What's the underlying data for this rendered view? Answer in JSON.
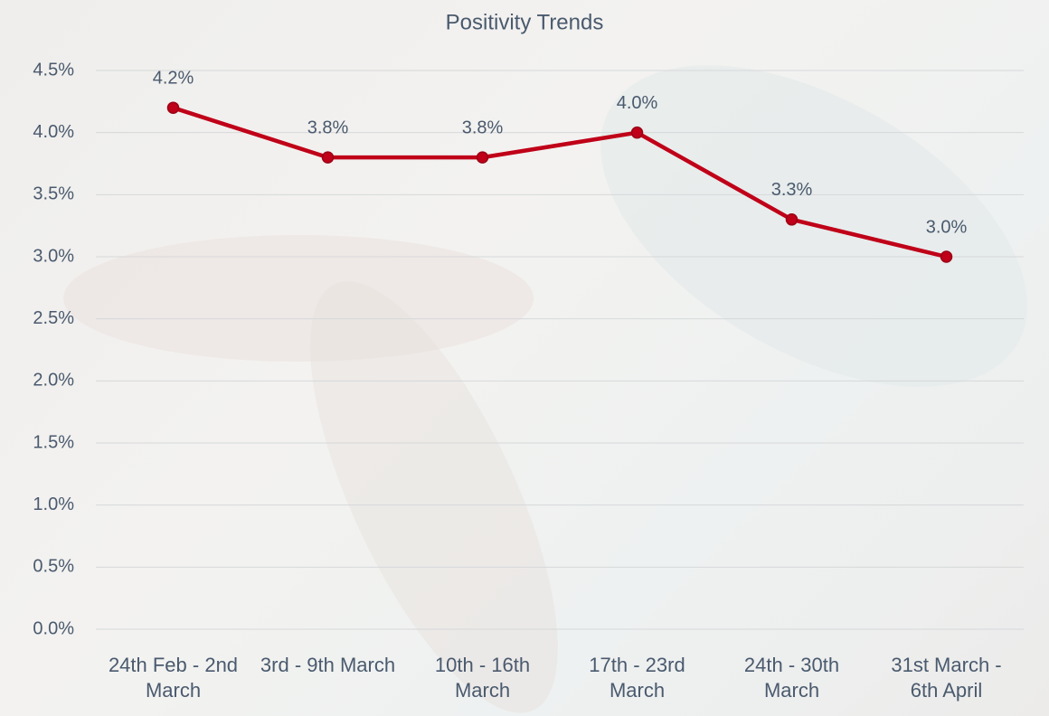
{
  "chart_data": {
    "type": "line",
    "title": "Positivity Trends",
    "categories": [
      "24th Feb - 2nd March",
      "3rd - 9th March",
      "10th - 16th March",
      "17th - 23rd March",
      "24th - 30th March",
      "31st March - 6th April"
    ],
    "series": [
      {
        "name": "Positivity",
        "color": "#c00018",
        "values": [
          4.2,
          3.8,
          3.8,
          4.0,
          3.3,
          3.0
        ],
        "value_labels": [
          "4.2%",
          "3.8%",
          "3.8%",
          "4.0%",
          "3.3%",
          "3.0%"
        ]
      }
    ],
    "ylim": [
      0,
      4.5
    ],
    "yticks": [
      {
        "value": 0,
        "label": "0.0%"
      },
      {
        "value": 0.5,
        "label": "0.5%"
      },
      {
        "value": 1,
        "label": "1.0%"
      },
      {
        "value": 1.5,
        "label": "1.5%"
      },
      {
        "value": 2,
        "label": "2.0%"
      },
      {
        "value": 2.5,
        "label": "2.5%"
      },
      {
        "value": 3,
        "label": "3.0%"
      },
      {
        "value": 3.5,
        "label": "3.5%"
      },
      {
        "value": 4,
        "label": "4.0%"
      },
      {
        "value": 4.5,
        "label": "4.5%"
      }
    ],
    "grid": true
  }
}
